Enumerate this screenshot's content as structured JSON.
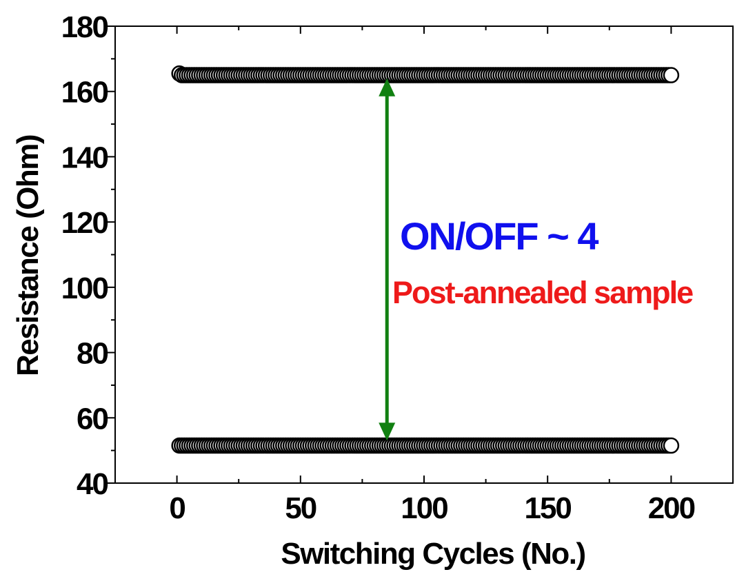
{
  "chart_data": {
    "type": "scatter",
    "xlabel": "Switching Cycles (No.)",
    "ylabel": "Resistance (Ohm)",
    "xlim": [
      -25,
      225
    ],
    "ylim": [
      40,
      180
    ],
    "xticks": [
      0,
      50,
      100,
      150,
      200
    ],
    "yticks": [
      40,
      60,
      80,
      100,
      120,
      140,
      160,
      180
    ],
    "x_minor_step": 25,
    "y_minor_step": 10,
    "grid": false,
    "legend": "none",
    "marker": "open-circle",
    "marker_color": "#000000",
    "series": [
      {
        "x_start": 1,
        "x_end": 200,
        "x_step": 1,
        "y_first": 165.5,
        "y_steady": 165.0
      },
      {
        "x_start": 1,
        "x_end": 200,
        "x_step": 1,
        "y_first": 51.5,
        "y_steady": 51.5
      }
    ],
    "arrow": {
      "x": 85,
      "y_from": 53,
      "y_to": 164,
      "color": "#118011",
      "style": "double-headed"
    },
    "annotations": [
      {
        "text": "ON/OFF ~ 4",
        "x": 88,
        "y": 121,
        "color": "#1010ee"
      },
      {
        "text": "Post-annealed sample",
        "x": 87,
        "y": 99,
        "color": "#ee1a1a"
      }
    ]
  }
}
